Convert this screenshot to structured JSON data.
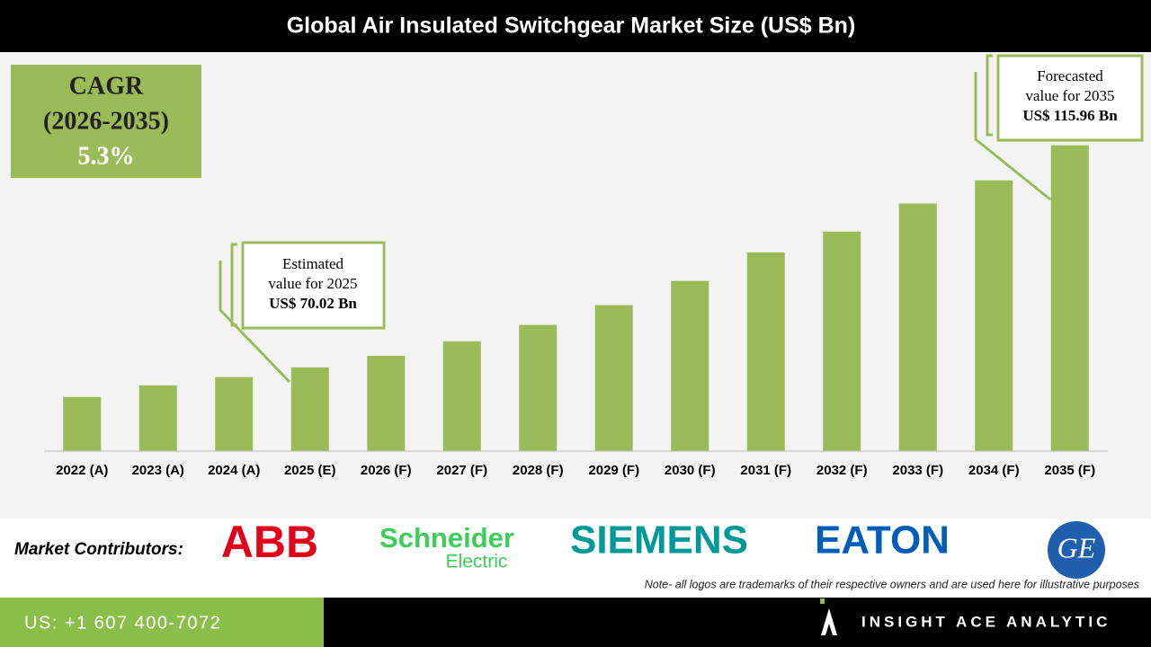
{
  "chart_data": {
    "type": "bar",
    "title": "Global Air Insulated Switchgear Market Size (US$ Bn)",
    "categories": [
      "2022 (A)",
      "2023 (A)",
      "2024 (A)",
      "2025 (E)",
      "2026 (F)",
      "2027 (F)",
      "2028 (F)",
      "2029 (F)",
      "2030 (F)",
      "2031 (F)",
      "2032 (F)",
      "2033 (F)",
      "2034 (F)",
      "2035 (F)"
    ],
    "values": [
      63.9,
      66.3,
      68.0,
      70.02,
      72.4,
      75.4,
      78.8,
      82.9,
      87.9,
      93.8,
      98.1,
      103.9,
      108.7,
      115.96
    ],
    "color": "#9bbb59",
    "ylim": [
      52.7,
      125
    ],
    "cagr": [
      "CAGR",
      "(2026-2035)",
      "5.3%"
    ],
    "annotations": [
      [
        "Estimated",
        "value for 2025",
        "US$ 70.02 Bn"
      ],
      [
        "Forecasted",
        "value for 2035",
        "US$ 115.96 Bn"
      ]
    ]
  },
  "contributors": {
    "label": "Market Contributors:",
    "logos": [
      "ABB",
      "Schneider",
      "Electric",
      "SIEMENS",
      "EATON",
      "GE"
    ],
    "note": "Note- all logos are trademarks of their respective owners and are used here for illustrative purposes"
  },
  "footer": {
    "phone": "US: +1 607 400-7072",
    "company": "INSIGHT ACE ANALYTIC"
  }
}
